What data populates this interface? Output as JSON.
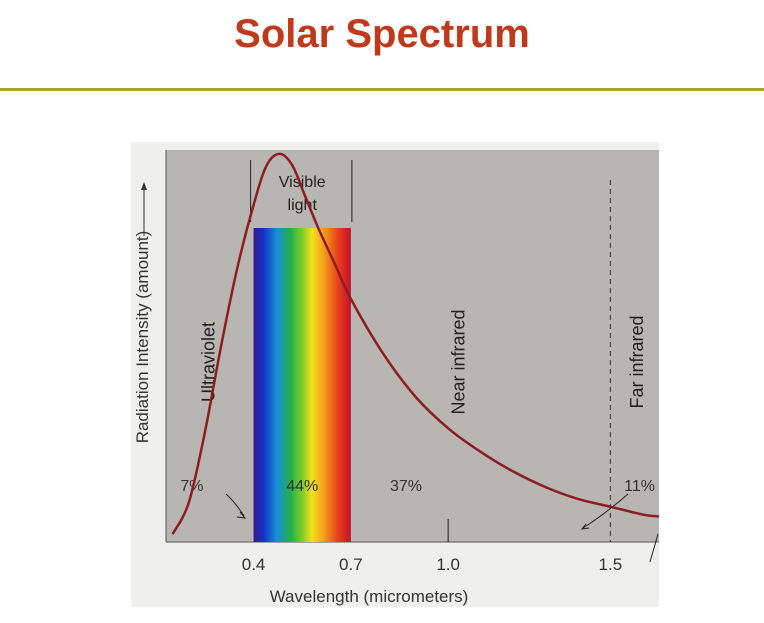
{
  "slide": {
    "title": "Solar Spectrum"
  },
  "chart_data": {
    "type": "line",
    "xlabel": "Wavelength (micrometers)",
    "ylabel": "Radiation Intensity (amount)",
    "xlim": [
      0.13,
      1.65
    ],
    "ylim": [
      0,
      1.0
    ],
    "x_ticks": [
      "0.4",
      "0.7",
      "1.0",
      "1.5"
    ],
    "series": [
      {
        "x": [
          0.15,
          0.2,
          0.25,
          0.3,
          0.35,
          0.4,
          0.44,
          0.48,
          0.52,
          0.56,
          0.6,
          0.65,
          0.7,
          0.8,
          0.9,
          1.0,
          1.1,
          1.2,
          1.3,
          1.4,
          1.5,
          1.6,
          1.65
        ],
        "values": [
          0.02,
          0.1,
          0.28,
          0.5,
          0.7,
          0.86,
          0.96,
          0.99,
          0.96,
          0.88,
          0.8,
          0.71,
          0.62,
          0.48,
          0.37,
          0.29,
          0.23,
          0.18,
          0.14,
          0.11,
          0.09,
          0.07,
          0.065
        ]
      }
    ],
    "visible_band": {
      "from": 0.4,
      "to": 0.7,
      "label_lines": [
        "Visible",
        "light"
      ]
    },
    "divider_dashed_x": 1.5,
    "regions": [
      {
        "label": "Ultraviolet",
        "x": 0.28
      },
      {
        "label": "Near infrared",
        "x": 1.05
      },
      {
        "label": "Far infrared",
        "x": 1.6
      }
    ],
    "percent_labels": [
      {
        "text": "7%",
        "x": 0.21
      },
      {
        "text": "44%",
        "x": 0.55
      },
      {
        "text": "37%",
        "x": 0.87
      },
      {
        "text": "11%",
        "x": 1.59
      }
    ]
  }
}
